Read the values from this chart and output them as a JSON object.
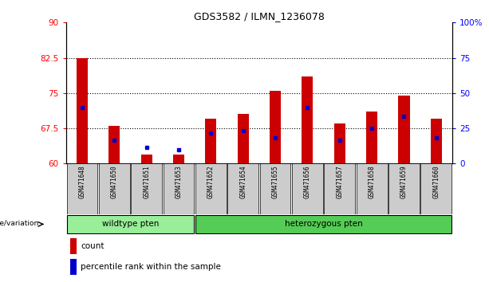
{
  "title": "GDS3582 / ILMN_1236078",
  "samples": [
    "GSM471648",
    "GSM471650",
    "GSM471651",
    "GSM471653",
    "GSM471652",
    "GSM471654",
    "GSM471655",
    "GSM471656",
    "GSM471657",
    "GSM471658",
    "GSM471659",
    "GSM471660"
  ],
  "bar_tops": [
    82.5,
    68.0,
    62.0,
    62.0,
    69.5,
    70.5,
    75.5,
    78.5,
    68.5,
    71.0,
    74.5,
    69.5
  ],
  "percentile_values": [
    72.0,
    65.0,
    63.5,
    63.0,
    66.5,
    67.0,
    65.5,
    72.0,
    65.0,
    67.5,
    70.0,
    65.5
  ],
  "base": 60,
  "ylim_left": [
    60,
    90
  ],
  "ylim_right": [
    0,
    100
  ],
  "yticks_left": [
    60,
    67.5,
    75,
    82.5,
    90
  ],
  "yticks_right": [
    0,
    25,
    50,
    75,
    100
  ],
  "ytick_labels_left": [
    "60",
    "67.5",
    "75",
    "82.5",
    "90"
  ],
  "ytick_labels_right": [
    "0",
    "25",
    "50",
    "75",
    "100%"
  ],
  "wildtype_samples": 4,
  "heterozygous_samples": 8,
  "wildtype_label": "wildtype pten",
  "heterozygous_label": "heterozygous pten",
  "group_label": "genotype/variation",
  "bar_color": "#cc0000",
  "percentile_color": "#0000cc",
  "wildtype_bg": "#99ee99",
  "heterozygous_bg": "#55cc55",
  "sample_bg": "#cccccc",
  "legend_count": "count",
  "legend_percentile": "percentile rank within the sample",
  "dotted_lines": [
    67.5,
    75,
    82.5
  ]
}
